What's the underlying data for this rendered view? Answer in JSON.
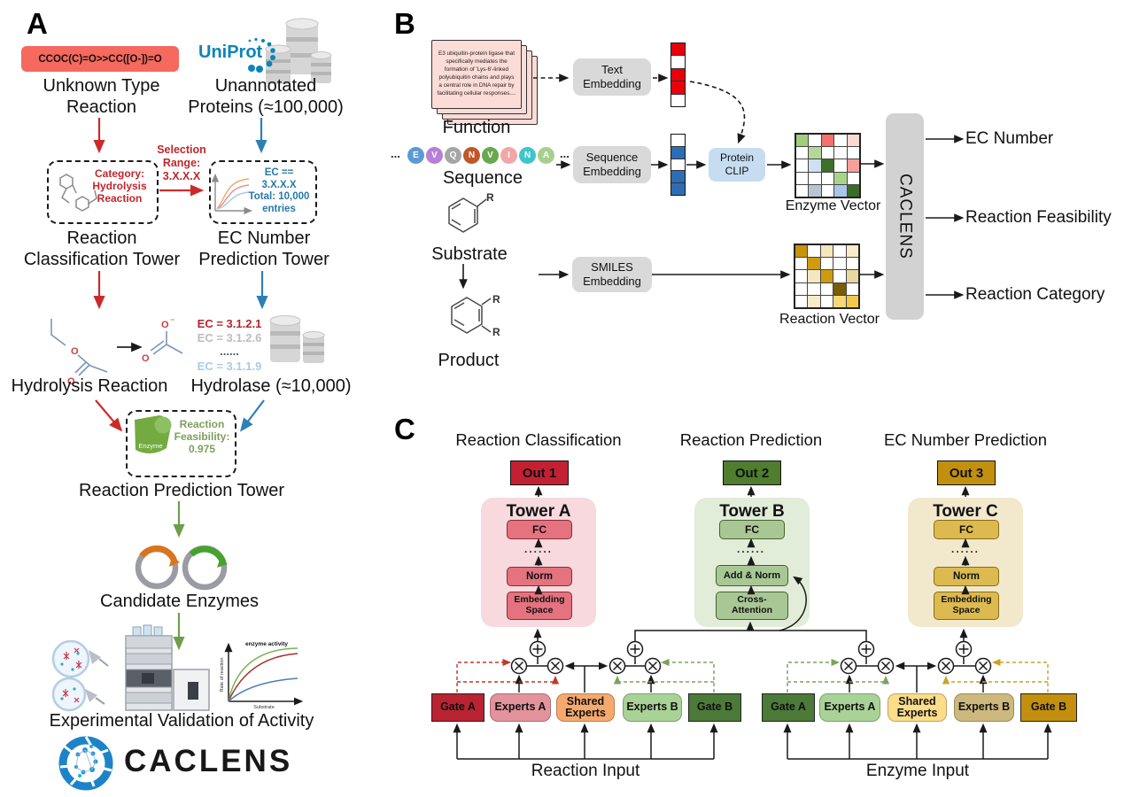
{
  "colors": {
    "accent_red": "#c0272d",
    "accent_blue": "#2878a8",
    "accent_green": "#6f9e4a",
    "smiles_box_bg": "#f5695e",
    "text_vector_red": "#e8000b",
    "seq_vector_blue": "#2e6db4",
    "gray_box": "#d9d9d9",
    "protein_clip_bg": "#c6ddf1",
    "caclens_bar_bg": "#d2d2d2",
    "out1_bg": "#c42034",
    "out2_bg": "#4e7e2e",
    "out3_bg": "#c28f0e",
    "tower_a_bg": "#f7d9de",
    "tower_b_bg": "#e1ecd9",
    "tower_c_bg": "#f2e9cd",
    "tower_a_box": "#e4727f",
    "tower_b_box": "#a9c795",
    "tower_c_box": "#dcba50",
    "moe_left_gate_a": "#b92332",
    "moe_left_experts_a": "#e2939c",
    "moe_left_shared": "#f5a96d",
    "moe_left_experts_b": "#a9d396",
    "moe_left_gate_b": "#4c7a38",
    "moe_right_gate_a": "#4c7a38",
    "moe_right_experts_a": "#a9d396",
    "moe_right_shared": "#fbdd8a",
    "moe_right_experts_b": "#cdb97e",
    "moe_right_gate_b": "#c28f0e"
  },
  "panelA": {
    "label": "A",
    "smiles": "CCOC(C)=O>>CC([O-])=O",
    "unknown_reaction_caption": "Unknown Type\nReaction",
    "uniprot_label": "UniProt",
    "unannotated_caption": "Unannotated\nProteins (≈100,000)",
    "selection_range": "Selection\nRange:\n3.X.X.X",
    "classification_box": "Category:\nHydrolysis\nReaction",
    "classification_caption": "Reaction\nClassification Tower",
    "ec_box": "EC == 3.X.X.X\nTotal: 10,000\nentries",
    "ec_caption": "EC Number\nPrediction Tower",
    "ec_list": [
      {
        "text": "EC = 3.1.2.1",
        "color": "#b5262c"
      },
      {
        "text": "EC = 3.1.2.6",
        "color": "#bcbcbc"
      },
      {
        "text": "......",
        "color": "#555555"
      },
      {
        "text": "EC = 3.1.1.9",
        "color": "#a9cbe3"
      }
    ],
    "hydrolysis_caption": "Hydrolysis Reaction",
    "hydrolase_caption": "Hydrolase (≈10,000)",
    "feasibility_box": "Reaction\nFeasibility:\n0.975",
    "enzyme_blob_label": "Enzyme",
    "prediction_caption": "Reaction Prediction Tower",
    "candidate_caption": "Candidate Enzymes",
    "validation_caption": "Experimental Validation of Activity",
    "activity_plot": {
      "title": "enzyme activity",
      "ylabel": "Rate of reaction",
      "xlabel": "Substrate"
    },
    "logo_text": "CACLENS"
  },
  "panelB": {
    "label": "B",
    "function_card_text": "E3 ubiquitin-protein ligase that specifically mediates the formation of 'Lys-6'-linked polyubiquitin chains and plays a central role in DNA repair by facilitating cellular responses....",
    "function_caption": "Function",
    "sequence_caption": "Sequence",
    "ellipsis": "...",
    "sequence_letters": [
      {
        "char": "E",
        "color": "#5b9bd5"
      },
      {
        "char": "V",
        "color": "#b77fd6"
      },
      {
        "char": "Q",
        "color": "#a6a6a6"
      },
      {
        "char": "N",
        "color": "#c0572a"
      },
      {
        "char": "V",
        "color": "#6aa84f"
      },
      {
        "char": "I",
        "color": "#f2a6a6"
      },
      {
        "char": "N",
        "color": "#3ec6cc"
      },
      {
        "char": "A",
        "color": "#a8d08d"
      }
    ],
    "text_embedding_label": "Text\nEmbedding",
    "sequence_embedding_label": "Sequence\nEmbedding",
    "smiles_embedding_label": "SMILES\nEmbedding",
    "protein_clip_label": "Protein\nCLIP",
    "text_vector_cells": [
      "#e8000b",
      "#ffffff",
      "#e8000b",
      "#e8000b",
      "#ffffff"
    ],
    "sequence_vector_cells": [
      "#ffffff",
      "#2e6db4",
      "#ffffff",
      "#2e6db4",
      "#2e6db4"
    ],
    "enzyme_vector": {
      "label": "Enzyme Vector",
      "cells": [
        [
          "#9fce7d",
          "#ffffff",
          "#f4726b",
          "#ffffff",
          "#fad8d4"
        ],
        [
          "#ffffff",
          "#b2d89a",
          "#ffffff",
          "#ffffff",
          "#ffffff"
        ],
        [
          "#ffffff",
          "#cfe0f0",
          "#3f6f2a",
          "#ffffff",
          "#f5a09a"
        ],
        [
          "#ffffff",
          "#ffffff",
          "#ffffff",
          "#a8d487",
          "#ffffff"
        ],
        [
          "#ffffff",
          "#b9c5d4",
          "#ffffff",
          "#a9c6e8",
          "#3c6b28"
        ]
      ]
    },
    "reaction_vector": {
      "label": "Reaction Vector",
      "cells": [
        [
          "#c8920a",
          "#ffffff",
          "#f5e6bc",
          "#ffffff",
          "#f7ecc9"
        ],
        [
          "#ffffff",
          "#cf9b10",
          "#ffffff",
          "#ffffff",
          "#ffffff"
        ],
        [
          "#ffffff",
          "#f5e7c0",
          "#cf9b10",
          "#ffffff",
          "#e8d6a0"
        ],
        [
          "#ffffff",
          "#ffffff",
          "#ffffff",
          "#7a5c07",
          "#ffffff"
        ],
        [
          "#ffffff",
          "#f7ecc9",
          "#ffffff",
          "#f5d87a",
          "#f2c84b"
        ]
      ]
    },
    "caclens_bar_label": "CACLENS",
    "substrate_caption": "Substrate",
    "product_caption": "Product",
    "r_group": "R",
    "outputs": [
      "EC Number",
      "Reaction Feasibility",
      "Reaction Category"
    ]
  },
  "panelC": {
    "label": "C",
    "columns": [
      {
        "header": "Reaction Classification",
        "out": "Out 1",
        "tower": "Tower A",
        "blocks": [
          "FC",
          "......",
          "Norm",
          "Embedding\nSpace"
        ]
      },
      {
        "header": "Reaction Prediction",
        "out": "Out 2",
        "tower": "Tower B",
        "blocks": [
          "FC",
          "......",
          "Add & Norm",
          "Cross-\nAttention"
        ]
      },
      {
        "header": "EC Number Prediction",
        "out": "Out 3",
        "tower": "Tower C",
        "blocks": [
          "FC",
          "......",
          "Norm",
          "Embedding\nSpace"
        ]
      }
    ],
    "moe_left": {
      "gate_a": "Gate A",
      "experts_a": "Experts A",
      "shared": "Shared\nExperts",
      "experts_b": "Experts B",
      "gate_b": "Gate B",
      "input": "Reaction Input"
    },
    "moe_right": {
      "gate_a": "Gate A",
      "experts_a": "Experts A",
      "shared": "Shared\nExperts",
      "experts_b": "Experts B",
      "gate_b": "Gate B",
      "input": "Enzyme Input"
    }
  }
}
